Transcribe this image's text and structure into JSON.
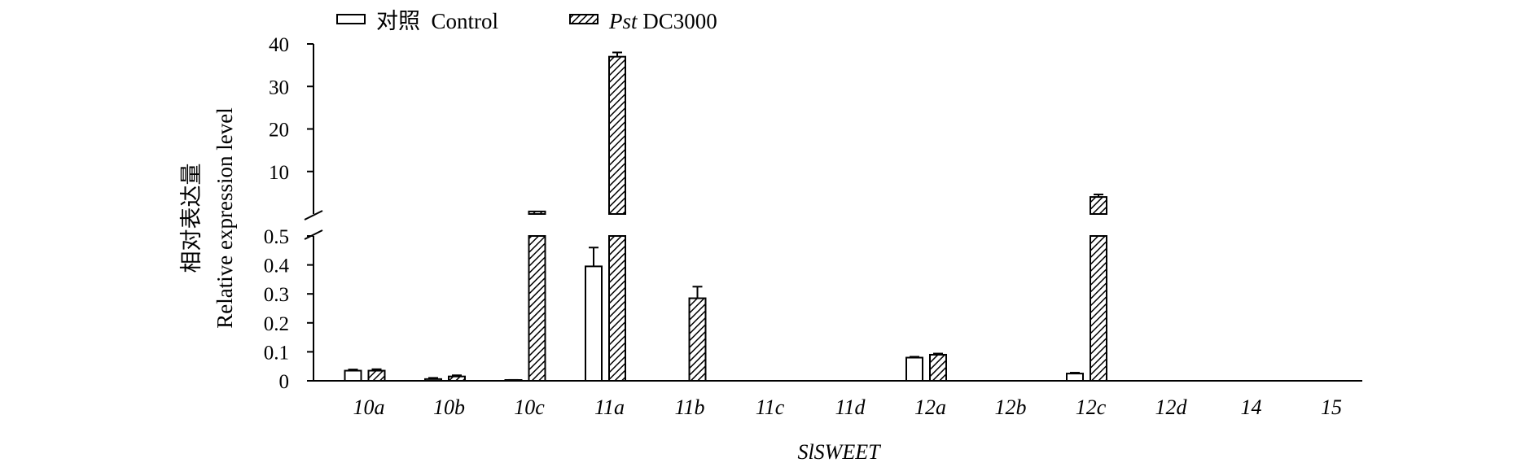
{
  "chart_data": {
    "type": "bar",
    "ylabel_zh": "相对表达量",
    "ylabel_en": "Relative expression level",
    "xlabel": "SlSWEET",
    "categories": [
      "10a",
      "10b",
      "10c",
      "11a",
      "11b",
      "11c",
      "11d",
      "12a",
      "12b",
      "12c",
      "12d",
      "14",
      "15"
    ],
    "axis_break": true,
    "lower_segment": {
      "ylim": [
        0,
        0.5
      ],
      "ticks": [
        "0",
        "0.1",
        "0.2",
        "0.3",
        "0.4",
        "0.5"
      ]
    },
    "upper_segment": {
      "ylim": [
        0,
        40
      ],
      "ticks": [
        "10",
        "20",
        "30",
        "40"
      ]
    },
    "series": [
      {
        "legend_label": "对照  Control",
        "pattern": "open",
        "values": [
          0.035,
          0.006,
          0.002,
          0.395,
          null,
          null,
          null,
          0.08,
          null,
          0.025,
          null,
          null,
          null
        ],
        "errors": [
          0.004,
          0.004,
          0.001,
          0.065,
          null,
          null,
          null,
          0.003,
          null,
          0.003,
          null,
          null,
          null
        ]
      },
      {
        "legend_label_italic": "Pst",
        "legend_label": " DC3000",
        "pattern": "hatched",
        "values": [
          0.035,
          0.015,
          0.6,
          37.0,
          0.285,
          null,
          null,
          0.09,
          null,
          4.0,
          null,
          null,
          null
        ],
        "errors": [
          0.005,
          0.004,
          null,
          1.0,
          0.04,
          null,
          null,
          0.004,
          null,
          0.6,
          null,
          null,
          null
        ]
      }
    ],
    "colors": {
      "bar_fill": "#ffffff",
      "stroke": "#000000",
      "hatch": "#000000"
    }
  }
}
